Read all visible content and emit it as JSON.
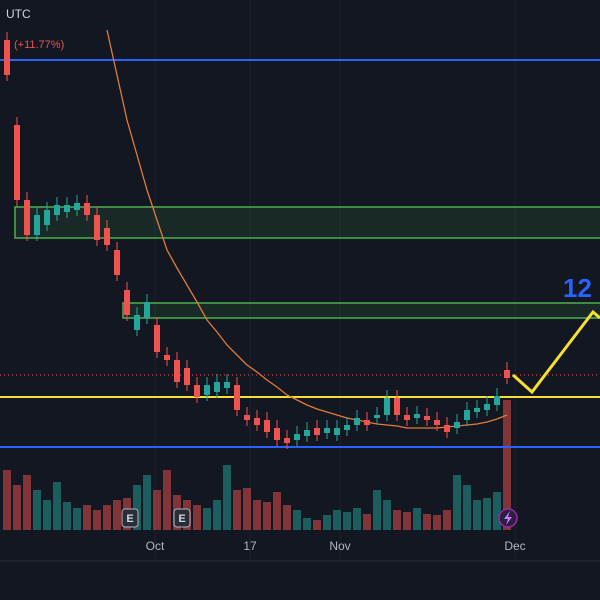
{
  "chart_data": {
    "type": "candlestick",
    "timezone": "UTC",
    "change_label": "(+11.77%)",
    "annotation": "12",
    "xlim": [
      -0.7,
      59.3
    ],
    "ylim": [
      0,
      530
    ],
    "y2lim": [
      0,
      530
    ],
    "xticks": [
      {
        "value": 14.8,
        "label": "Oct"
      },
      {
        "value": 24.3,
        "label": "17"
      },
      {
        "value": 33.3,
        "label": "Nov"
      },
      {
        "value": 50.8,
        "label": "Dec"
      }
    ],
    "up_color": "#26a69a",
    "down_color": "#ef5350",
    "x": [
      0,
      1,
      2,
      3,
      4,
      5,
      6,
      7,
      8,
      9,
      10,
      11,
      12,
      13,
      14,
      15,
      16,
      17,
      18,
      19,
      20,
      21,
      22,
      23,
      24,
      25,
      26,
      27,
      28,
      29,
      30,
      31,
      32,
      33,
      34,
      35,
      36,
      37,
      38,
      39,
      40,
      41,
      42,
      43,
      44,
      45,
      46,
      47,
      48,
      49,
      50
    ],
    "open": [
      490,
      405,
      330,
      295,
      305,
      315,
      318,
      320,
      327,
      315,
      302,
      280,
      240,
      200,
      212,
      205,
      175,
      170,
      162,
      145,
      135,
      138,
      142,
      145,
      115,
      112,
      110,
      102,
      92,
      90,
      94,
      102,
      97,
      95,
      100,
      105,
      110,
      112,
      115,
      132,
      115,
      112,
      114,
      110,
      105,
      102,
      110,
      118,
      120,
      125,
      160
    ],
    "high": [
      498,
      413,
      338,
      323,
      328,
      333,
      333,
      335,
      335,
      323,
      310,
      288,
      248,
      223,
      236,
      213,
      183,
      178,
      170,
      153,
      153,
      156,
      156,
      153,
      123,
      120,
      118,
      110,
      100,
      104,
      108,
      110,
      110,
      110,
      113,
      120,
      118,
      123,
      140,
      140,
      123,
      124,
      122,
      118,
      113,
      116,
      128,
      130,
      134,
      142,
      168
    ],
    "low": [
      449,
      324,
      289,
      289,
      299,
      309,
      312,
      314,
      309,
      284,
      279,
      249,
      209,
      194,
      206,
      172,
      164,
      142,
      139,
      127,
      129,
      132,
      136,
      114,
      104,
      99,
      92,
      84,
      81,
      84,
      88,
      89,
      91,
      89,
      94,
      99,
      99,
      106,
      109,
      109,
      104,
      106,
      104,
      99,
      92,
      96,
      104,
      112,
      114,
      119,
      146
    ],
    "close": [
      455,
      330,
      295,
      315,
      320,
      325,
      325,
      327,
      315,
      290,
      285,
      255,
      215,
      215,
      228,
      178,
      170,
      148,
      145,
      133,
      145,
      148,
      148,
      120,
      110,
      105,
      98,
      90,
      87,
      96,
      100,
      95,
      102,
      102,
      105,
      112,
      105,
      115,
      132,
      115,
      110,
      116,
      110,
      105,
      98,
      108,
      120,
      122,
      126,
      134,
      152
    ],
    "volume": [
      60,
      45,
      55,
      40,
      30,
      48,
      28,
      22,
      25,
      20,
      25,
      30,
      32,
      45,
      55,
      40,
      60,
      35,
      30,
      25,
      22,
      30,
      65,
      40,
      42,
      30,
      28,
      38,
      25,
      20,
      12,
      10,
      15,
      20,
      18,
      22,
      16,
      40,
      30,
      20,
      18,
      22,
      16,
      15,
      20,
      55,
      45,
      30,
      32,
      38,
      130
    ],
    "ma": {
      "color": "#e07b39",
      "values": [
        null,
        null,
        null,
        null,
        null,
        null,
        null,
        null,
        null,
        null,
        500,
        455,
        410,
        375,
        340,
        310,
        280,
        262,
        245,
        228,
        210,
        198,
        185,
        175,
        165,
        158,
        150,
        143,
        135,
        130,
        125,
        121,
        118,
        115,
        112,
        110,
        108,
        106,
        105,
        104,
        102,
        102,
        102,
        102,
        103,
        104,
        105,
        106,
        108,
        111,
        115
      ]
    },
    "levels": [
      {
        "value": 470,
        "color": "#2962ff"
      },
      {
        "value": 83,
        "color": "#2962ff"
      },
      {
        "value": 133,
        "color": "#f5e033"
      }
    ],
    "last_price_line": {
      "value": 155,
      "color": "#ef5350"
    },
    "zones": [
      {
        "from": 292,
        "to": 323,
        "start": 0.8,
        "color": "#4caf50"
      },
      {
        "from": 212,
        "to": 227,
        "start": 11.6,
        "color": "#4caf50"
      }
    ],
    "events": [
      {
        "x": 12.3,
        "label": "E"
      },
      {
        "x": 17.5,
        "label": "E"
      }
    ]
  }
}
